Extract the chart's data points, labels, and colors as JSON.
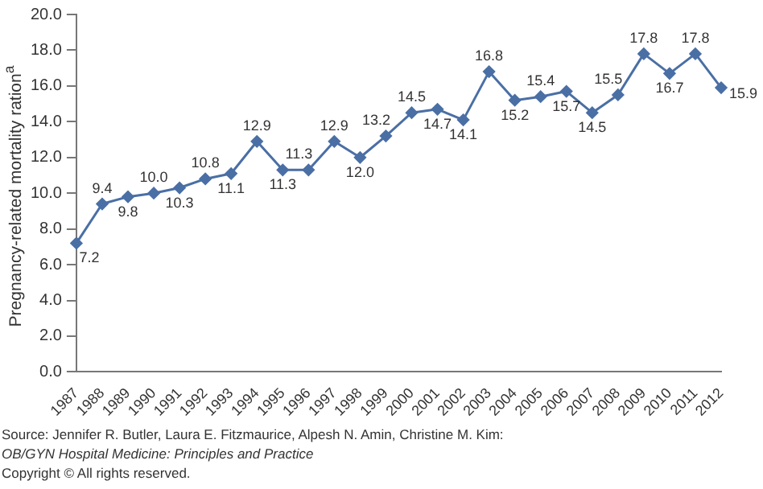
{
  "chart_data": {
    "type": "line",
    "ylabel": "Pregnancy-related mortality ration$^{a}$",
    "categories": [
      "1987",
      "1988",
      "1989",
      "1990",
      "1991",
      "1992",
      "1993",
      "1994",
      "1995",
      "1996",
      "1997",
      "1998",
      "1999",
      "2000",
      "2001",
      "2002",
      "2003",
      "2004",
      "2005",
      "2006",
      "2007",
      "2008",
      "2009",
      "2010",
      "2011",
      "2012"
    ],
    "series": [
      {
        "color": "#4a6fa5",
        "values": [
          7.2,
          9.4,
          9.8,
          10.0,
          10.3,
          10.8,
          11.1,
          12.9,
          11.3,
          11.3,
          12.9,
          12.0,
          13.2,
          14.5,
          14.7,
          14.1,
          16.8,
          15.2,
          15.4,
          15.7,
          14.5,
          15.5,
          17.8,
          16.7,
          17.8,
          15.9
        ]
      }
    ],
    "value_labels": [
      "7.2",
      "9.4",
      "9.8",
      "10.0",
      "10.3",
      "10.8",
      "11.1",
      "12.9",
      "11.3",
      "11.3",
      "12.9",
      "12.0",
      "13.2",
      "14.5",
      "14.7",
      "14.1",
      "16.8",
      "15.2",
      "15.4",
      "15.7",
      "14.5",
      "15.5",
      "17.8",
      "16.7",
      "17.8",
      "15.9"
    ],
    "ylim": [
      0,
      20
    ],
    "yticks": [
      {
        "value": 0,
        "label": "0.0"
      },
      {
        "value": 2,
        "label": "2.0"
      },
      {
        "value": 4,
        "label": "4.0"
      },
      {
        "value": 6,
        "label": "6.0"
      },
      {
        "value": 8,
        "label": "8.0"
      },
      {
        "value": 10,
        "label": "10.0"
      },
      {
        "value": 12,
        "label": "12.0"
      },
      {
        "value": 14,
        "label": "14.0"
      },
      {
        "value": 16,
        "label": "16.0"
      },
      {
        "value": 18,
        "label": "18.0"
      },
      {
        "value": 20,
        "label": "20.0"
      }
    ],
    "grid": false,
    "legend": false,
    "marker": "diamond",
    "line_style": "solid",
    "annotations": [
      "Source: Jennifer R. Butler, Laura E. Fitzmaurice, Alpesh N. Amin, Christine M. Kim:",
      "OB/GYN Hospital Medicine: Principles and Practice",
      "Copyright © All rights reserved."
    ]
  }
}
